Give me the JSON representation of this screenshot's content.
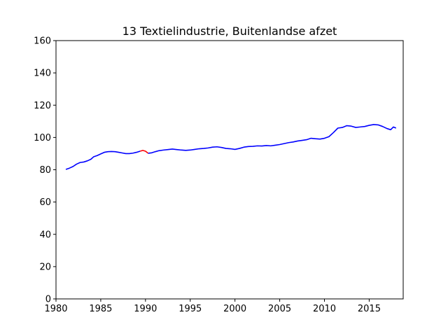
{
  "chart_data": {
    "type": "line",
    "title": "13 Textielindustrie, Buitenlandse afzet",
    "xlabel": "",
    "ylabel": "",
    "xlim": [
      1980,
      1988.8
    ],
    "xlim_note": "",
    "ylim": [
      0,
      160
    ],
    "xticks": [
      1980,
      1985,
      1990,
      1995,
      2000,
      2005,
      2010,
      2015
    ],
    "yticks": [
      0,
      20,
      40,
      60,
      80,
      100,
      120,
      140,
      160
    ],
    "grid": false,
    "legend": "none",
    "series": [
      {
        "color": "#0000ff",
        "points": [
          [
            1981.1,
            80.2
          ],
          [
            1981.5,
            81.0
          ],
          [
            1981.9,
            82.0
          ],
          [
            1982.3,
            83.5
          ],
          [
            1982.7,
            84.5
          ],
          [
            1983.1,
            84.8
          ],
          [
            1983.5,
            85.5
          ],
          [
            1983.9,
            86.5
          ],
          [
            1984.2,
            88.0
          ],
          [
            1984.6,
            88.8
          ],
          [
            1985.0,
            89.8
          ],
          [
            1985.4,
            90.8
          ],
          [
            1985.8,
            91.2
          ],
          [
            1986.2,
            91.3
          ],
          [
            1986.6,
            91.2
          ],
          [
            1987.0,
            90.8
          ],
          [
            1987.4,
            90.4
          ],
          [
            1987.8,
            90.0
          ],
          [
            1988.2,
            90.0
          ],
          [
            1988.6,
            90.3
          ],
          [
            1989.0,
            90.8
          ],
          [
            1989.4,
            91.5
          ]
        ]
      },
      {
        "color": "#ff0000",
        "points": [
          [
            1989.4,
            91.5
          ],
          [
            1989.7,
            92.0
          ],
          [
            1990.0,
            91.5
          ],
          [
            1990.3,
            90.2
          ]
        ]
      },
      {
        "color": "#0000ff",
        "points": [
          [
            1990.3,
            90.2
          ],
          [
            1990.7,
            90.5
          ],
          [
            1991.1,
            91.2
          ],
          [
            1991.5,
            91.8
          ],
          [
            1992.0,
            92.2
          ],
          [
            1992.5,
            92.5
          ],
          [
            1993.0,
            92.8
          ],
          [
            1993.5,
            92.5
          ],
          [
            1994.0,
            92.2
          ],
          [
            1994.5,
            92.0
          ],
          [
            1995.0,
            92.2
          ],
          [
            1995.5,
            92.6
          ],
          [
            1996.0,
            93.0
          ],
          [
            1996.5,
            93.2
          ],
          [
            1997.0,
            93.5
          ],
          [
            1997.5,
            94.0
          ],
          [
            1998.0,
            94.2
          ],
          [
            1998.5,
            93.8
          ],
          [
            1999.0,
            93.2
          ],
          [
            1999.5,
            93.0
          ],
          [
            2000.0,
            92.6
          ],
          [
            2000.5,
            93.2
          ],
          [
            2001.0,
            94.0
          ],
          [
            2001.5,
            94.4
          ],
          [
            2002.0,
            94.5
          ],
          [
            2002.5,
            94.8
          ],
          [
            2003.0,
            94.7
          ],
          [
            2003.5,
            95.0
          ],
          [
            2004.0,
            94.8
          ],
          [
            2004.5,
            95.2
          ],
          [
            2005.0,
            95.6
          ],
          [
            2005.5,
            96.2
          ],
          [
            2006.0,
            96.8
          ],
          [
            2006.5,
            97.2
          ],
          [
            2007.0,
            97.8
          ],
          [
            2007.5,
            98.2
          ],
          [
            2008.0,
            98.6
          ],
          [
            2008.5,
            99.5
          ],
          [
            2009.0,
            99.2
          ],
          [
            2009.5,
            99.0
          ],
          [
            2010.0,
            99.5
          ],
          [
            2010.5,
            100.5
          ],
          [
            2011.0,
            103.0
          ],
          [
            2011.5,
            105.8
          ],
          [
            2012.0,
            106.2
          ],
          [
            2012.5,
            107.3
          ],
          [
            2013.0,
            107.0
          ],
          [
            2013.5,
            106.2
          ],
          [
            2014.0,
            106.5
          ],
          [
            2014.5,
            106.8
          ],
          [
            2015.0,
            107.5
          ],
          [
            2015.5,
            108.0
          ],
          [
            2016.0,
            107.8
          ],
          [
            2016.5,
            106.8
          ],
          [
            2017.0,
            105.5
          ],
          [
            2017.4,
            104.8
          ],
          [
            2017.7,
            106.5
          ],
          [
            2018.0,
            105.8
          ]
        ]
      }
    ]
  }
}
